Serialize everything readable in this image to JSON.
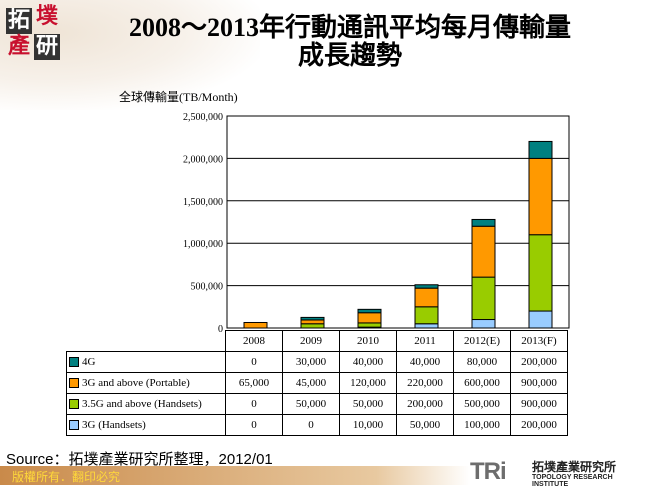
{
  "logo": {
    "chars": [
      "拓",
      "墣",
      "產",
      "研"
    ]
  },
  "title_line1": "2008～2013年行動通訊平均每月傳輸量",
  "title_line2": "成長趨勢",
  "chart_data": {
    "type": "bar",
    "stacked": true,
    "title": "2008～2013年行動通訊平均每月傳輸量成長趨勢",
    "ylabel": "全球傳輸量(TB/Month)",
    "ylim": [
      0,
      2500000
    ],
    "yticks": [
      "0",
      "500,000",
      "1,000,000",
      "1,500,000",
      "2,000,000",
      "2,500,000"
    ],
    "ytick_values": [
      0,
      500000,
      1000000,
      1500000,
      2000000,
      2500000
    ],
    "grid": true,
    "legend": "data-table",
    "categories": [
      "2008",
      "2009",
      "2010",
      "2011",
      "2012(E)",
      "2013(F)"
    ],
    "series": [
      {
        "name": "4G",
        "color": "#008080",
        "values": [
          0,
          30000,
          40000,
          40000,
          80000,
          200000
        ],
        "labels": [
          "0",
          "30,000",
          "40,000",
          "40,000",
          "80,000",
          "200,000"
        ]
      },
      {
        "name": "3G and above (Portable)",
        "color": "#ff9900",
        "values": [
          65000,
          45000,
          120000,
          220000,
          600000,
          900000
        ],
        "labels": [
          "65,000",
          "45,000",
          "120,000",
          "220,000",
          "600,000",
          "900,000"
        ]
      },
      {
        "name": "3.5G and above (Handsets)",
        "color": "#99cc00",
        "values": [
          0,
          50000,
          50000,
          200000,
          500000,
          900000
        ],
        "labels": [
          "0",
          "50,000",
          "50,000",
          "200,000",
          "500,000",
          "900,000"
        ]
      },
      {
        "name": "3G (Handsets)",
        "color": "#99ccff",
        "values": [
          0,
          0,
          10000,
          50000,
          100000,
          200000
        ],
        "labels": [
          "0",
          "0",
          "10,000",
          "50,000",
          "100,000",
          "200,000"
        ]
      }
    ]
  },
  "source": "Source：拓墣產業研究所整理，2012/01",
  "footer": {
    "copyright": "版權所有．翻印必究"
  },
  "brand": {
    "mark": "TRi",
    "name_cn": "拓墣產業研究所",
    "name_en": "TOPOLOGY RESEARCH INSTITUTE"
  }
}
